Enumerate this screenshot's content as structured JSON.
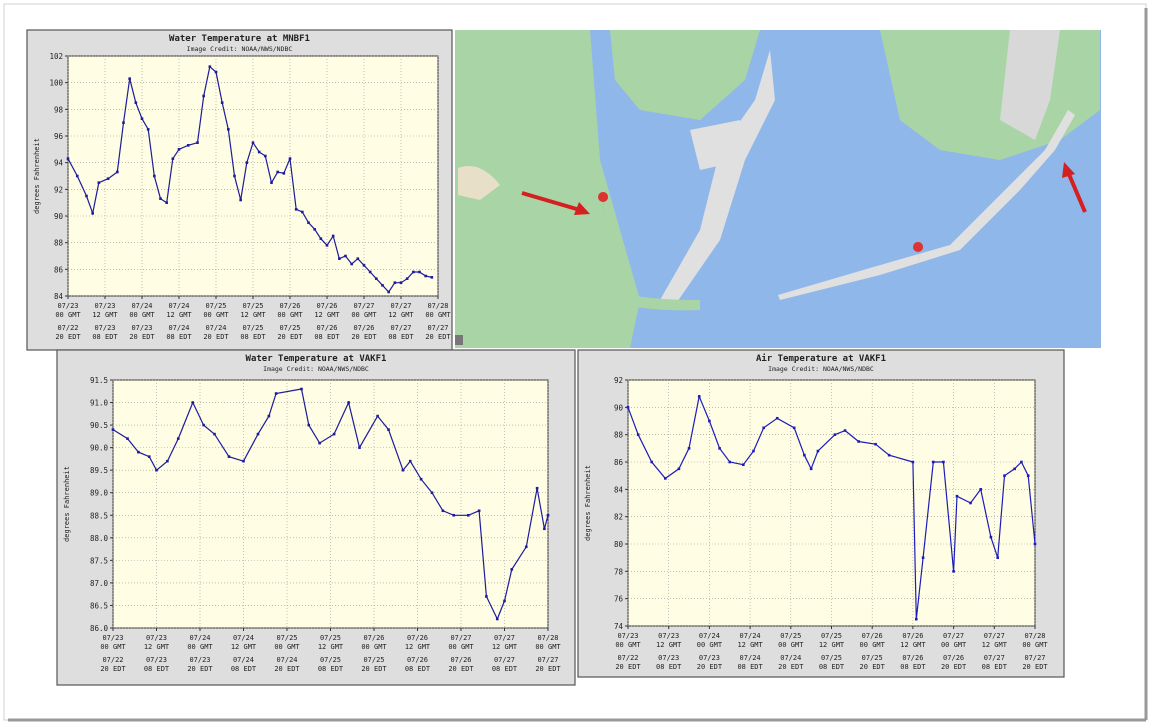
{
  "chart_data": [
    {
      "type": "line",
      "title": "Water Temperature at MNBF1",
      "subtitle": "Image Credit: NOAA/NWS/NDBC",
      "ylabel": "degrees Fahrenheit",
      "color": "#1c1c9c",
      "grid": true,
      "xlim": [
        "07/23 00 GMT",
        "07/28 00 GMT"
      ],
      "xticks": [
        "07/23 00 GMT",
        "07/23 12 GMT",
        "07/24 00 GMT",
        "07/24 12 GMT",
        "07/25 00 GMT",
        "07/25 12 GMT",
        "07/26 00 GMT",
        "07/26 12 GMT",
        "07/27 00 GMT",
        "07/27 12 GMT",
        "07/28 00 GMT"
      ],
      "xticks_edt": [
        "07/22 20 EDT",
        "07/23 08 EDT",
        "07/23 20 EDT",
        "07/24 08 EDT",
        "07/24 20 EDT",
        "07/25 08 EDT",
        "07/25 20 EDT",
        "07/26 08 EDT",
        "07/26 20 EDT",
        "07/27 08 EDT",
        "07/27 20 EDT"
      ],
      "ylim": [
        84,
        102
      ],
      "yticks": [
        84,
        86,
        88,
        90,
        92,
        94,
        96,
        98,
        100,
        102
      ],
      "x": [
        "07/23 00 GMT",
        "07/23 03 GMT",
        "07/23 06 GMT",
        "07/23 08 GMT",
        "07/23 10 GMT",
        "07/23 13 GMT",
        "07/23 16 GMT",
        "07/23 18 GMT",
        "07/23 20 GMT",
        "07/23 22 GMT",
        "07/24 00 GMT",
        "07/24 02 GMT",
        "07/24 04 GMT",
        "07/24 06 GMT",
        "07/24 08 GMT",
        "07/24 10 GMT",
        "07/24 12 GMT",
        "07/24 15 GMT",
        "07/24 18 GMT",
        "07/24 20 GMT",
        "07/24 22 GMT",
        "07/25 00 GMT",
        "07/25 02 GMT",
        "07/25 04 GMT",
        "07/25 06 GMT",
        "07/25 08 GMT",
        "07/25 10 GMT",
        "07/25 12 GMT",
        "07/25 14 GMT",
        "07/25 16 GMT",
        "07/25 18 GMT",
        "07/25 20 GMT",
        "07/25 22 GMT",
        "07/26 00 GMT",
        "07/26 02 GMT",
        "07/26 04 GMT",
        "07/26 06 GMT",
        "07/26 08 GMT",
        "07/26 10 GMT",
        "07/26 12 GMT",
        "07/26 14 GMT",
        "07/26 16 GMT",
        "07/26 18 GMT",
        "07/26 20 GMT",
        "07/26 22 GMT",
        "07/27 00 GMT",
        "07/27 02 GMT",
        "07/27 04 GMT",
        "07/27 06 GMT",
        "07/27 08 GMT",
        "07/27 10 GMT",
        "07/27 12 GMT",
        "07/27 14 GMT",
        "07/27 16 GMT",
        "07/27 18 GMT",
        "07/27 20 GMT",
        "07/27 22 GMT"
      ],
      "values": [
        94.3,
        93,
        91.5,
        90.2,
        92.5,
        92.8,
        93.3,
        97,
        100.3,
        98.5,
        97.3,
        96.5,
        93,
        91.3,
        91,
        94.3,
        95,
        95.3,
        95.5,
        99,
        101.2,
        100.8,
        98.5,
        96.5,
        93,
        91.2,
        94,
        95.5,
        94.8,
        94.5,
        92.5,
        93.3,
        93.2,
        94.3,
        90.5,
        90.3,
        89.5,
        89,
        88.3,
        87.8,
        88.5,
        86.8,
        87,
        86.4,
        86.8,
        86.3,
        85.8,
        85.3,
        84.8,
        84.3,
        85,
        85,
        85.3,
        85.8,
        85.8,
        85.5,
        85.4
      ]
    },
    {
      "type": "line",
      "title": "Water Temperature at VAKF1",
      "subtitle": "Image Credit: NOAA/NWS/NDBC",
      "ylabel": "degrees Fahrenheit",
      "color": "#1c1c9c",
      "grid": true,
      "xlim": [
        "07/23 00 GMT",
        "07/28 00 GMT"
      ],
      "xticks": [
        "07/23 00 GMT",
        "07/23 12 GMT",
        "07/24 00 GMT",
        "07/24 12 GMT",
        "07/25 00 GMT",
        "07/25 12 GMT",
        "07/26 00 GMT",
        "07/26 12 GMT",
        "07/27 00 GMT",
        "07/27 12 GMT",
        "07/28 00 GMT"
      ],
      "xticks_edt": [
        "07/22 20 EDT",
        "07/23 08 EDT",
        "07/23 20 EDT",
        "07/24 08 EDT",
        "07/24 20 EDT",
        "07/25 08 EDT",
        "07/25 20 EDT",
        "07/26 08 EDT",
        "07/26 20 EDT",
        "07/27 08 EDT",
        "07/27 20 EDT"
      ],
      "ylim": [
        86,
        91.5
      ],
      "yticks": [
        {
          "value": 86,
          "label": "86.0"
        },
        86.5,
        {
          "value": 87,
          "label": "87.0"
        },
        87.5,
        {
          "value": 88,
          "label": "88.0"
        },
        88.5,
        {
          "value": 89,
          "label": "89.0"
        },
        89.5,
        {
          "value": 90,
          "label": "90.0"
        },
        90.5,
        {
          "value": 91,
          "label": "91.0"
        },
        91.5
      ],
      "x": [
        "07/23 00 GMT",
        "07/23 04 GMT",
        "07/23 07 GMT",
        "07/23 10 GMT",
        "07/23 12 GMT",
        "07/23 15 GMT",
        "07/23 18 GMT",
        "07/23 22 GMT",
        "07/24 01 GMT",
        "07/24 04 GMT",
        "07/24 08 GMT",
        "07/24 12 GMT",
        "07/24 16 GMT",
        "07/24 19 GMT",
        "07/24 21 GMT",
        "07/25 04 GMT",
        "07/25 06 GMT",
        "07/25 09 GMT",
        "07/25 13 GMT",
        "07/25 17 GMT",
        "07/25 20 GMT",
        "07/26 01 GMT",
        "07/26 04 GMT",
        "07/26 08 GMT",
        "07/26 10 GMT",
        "07/26 13 GMT",
        "07/26 16 GMT",
        "07/26 19 GMT",
        "07/26 22 GMT",
        "07/27 02 GMT",
        "07/27 05 GMT",
        "07/27 07 GMT",
        "07/27 10 GMT",
        "07/27 12 GMT",
        "07/27 14 GMT",
        "07/27 18 GMT",
        "07/27 21 GMT",
        "07/27 23 GMT",
        "07/28 00 GMT"
      ],
      "values": [
        90.4,
        90.2,
        89.9,
        89.8,
        89.5,
        89.7,
        90.2,
        91.0,
        90.5,
        90.3,
        89.8,
        89.7,
        90.3,
        90.7,
        91.2,
        91.3,
        90.5,
        90.1,
        90.3,
        91.0,
        90.0,
        90.7,
        90.4,
        89.5,
        89.7,
        89.3,
        89.0,
        88.6,
        88.5,
        88.5,
        88.6,
        86.7,
        86.2,
        86.6,
        87.3,
        87.8,
        89.1,
        88.2,
        88.5
      ]
    },
    {
      "type": "line",
      "title": "Air Temperature at VAKF1",
      "subtitle": "Image Credit: NOAA/NWS/NDBC",
      "ylabel": "degrees Fahrenheit",
      "color": "#1c1cbc",
      "grid": true,
      "xlim": [
        "07/23 00 GMT",
        "07/28 00 GMT"
      ],
      "xticks": [
        "07/23 00 GMT",
        "07/23 12 GMT",
        "07/24 00 GMT",
        "07/24 12 GMT",
        "07/25 00 GMT",
        "07/25 12 GMT",
        "07/26 00 GMT",
        "07/26 12 GMT",
        "07/27 00 GMT",
        "07/27 12 GMT",
        "07/28 00 GMT"
      ],
      "xticks_edt": [
        "07/22 20 EDT",
        "07/23 08 EDT",
        "07/23 20 EDT",
        "07/24 08 EDT",
        "07/24 20 EDT",
        "07/25 08 EDT",
        "07/25 20 EDT",
        "07/26 08 EDT",
        "07/26 20 EDT",
        "07/27 08 EDT",
        "07/27 20 EDT"
      ],
      "ylim": [
        74,
        92
      ],
      "yticks": [
        74,
        76,
        78,
        80,
        82,
        84,
        86,
        88,
        90,
        92
      ],
      "x": [
        "07/23 00 GMT",
        "07/23 03 GMT",
        "07/23 07 GMT",
        "07/23 11 GMT",
        "07/23 15 GMT",
        "07/23 18 GMT",
        "07/23 21 GMT",
        "07/24 00 GMT",
        "07/24 03 GMT",
        "07/24 06 GMT",
        "07/24 10 GMT",
        "07/24 13 GMT",
        "07/24 16 GMT",
        "07/24 20 GMT",
        "07/25 01 GMT",
        "07/25 04 GMT",
        "07/25 06 GMT",
        "07/25 08 GMT",
        "07/25 13 GMT",
        "07/25 16 GMT",
        "07/25 20 GMT",
        "07/26 01 GMT",
        "07/26 05 GMT",
        "07/26 12 GMT",
        "07/26 13 GMT",
        "07/26 15 GMT",
        "07/26 18 GMT",
        "07/26 21 GMT",
        "07/27 00 GMT",
        "07/27 01 GMT",
        "07/27 05 GMT",
        "07/27 08 GMT",
        "07/27 11 GMT",
        "07/27 13 GMT",
        "07/27 15 GMT",
        "07/27 18 GMT",
        "07/27 20 GMT",
        "07/27 22 GMT",
        "07/28 00 GMT"
      ],
      "values": [
        90,
        88,
        86,
        84.8,
        85.5,
        87,
        90.8,
        89,
        87,
        86,
        85.8,
        86.8,
        88.5,
        89.2,
        88.5,
        86.5,
        85.5,
        86.8,
        88,
        88.3,
        87.5,
        87.3,
        86.5,
        86,
        74.5,
        79,
        86,
        86,
        78,
        83.5,
        83,
        84,
        80.5,
        79,
        85,
        85.5,
        86,
        85,
        80
      ]
    }
  ]
}
